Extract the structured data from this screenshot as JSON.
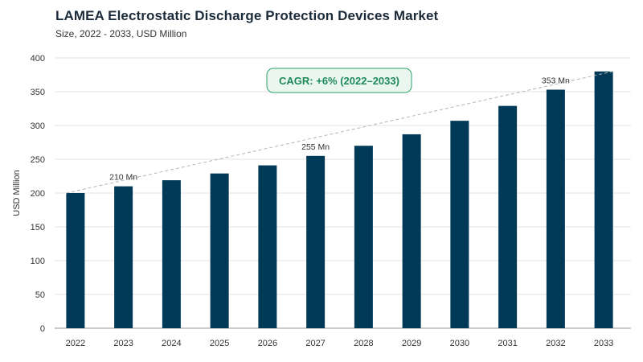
{
  "header": {
    "title": "LAMEA Electrostatic Discharge Protection Devices Market",
    "subtitle": "Size, 2022 - 2033, USD Million"
  },
  "colors": {
    "bar": "#003a57",
    "trend": "#b5b5b5",
    "cagr_accent": "#2ea36b"
  },
  "chart_data": {
    "type": "bar",
    "title": "LAMEA Electrostatic Discharge Protection Devices Market",
    "subtitle": "Size, 2022 - 2033, USD Million",
    "ylabel": "USD Million",
    "xlabel": "",
    "ylim": [
      0,
      400
    ],
    "yticks": [
      0,
      50,
      100,
      150,
      200,
      250,
      300,
      350,
      400
    ],
    "categories": [
      "2022",
      "2023",
      "2024",
      "2025",
      "2026",
      "2027",
      "2028",
      "2029",
      "2030",
      "2031",
      "2032",
      "2033"
    ],
    "values": [
      200,
      210,
      219,
      229,
      241,
      255,
      270,
      287,
      307,
      329,
      353,
      380
    ],
    "grid": "horizontal",
    "annotations": [
      {
        "category": "2023",
        "text": "210 Mn"
      },
      {
        "category": "2027",
        "text": "255 Mn"
      },
      {
        "category": "2032",
        "text": "353 Mn"
      }
    ],
    "cagr_label": "CAGR: +6% (2022–2033)",
    "trend_line": {
      "from": "2022",
      "to": "2033"
    }
  }
}
